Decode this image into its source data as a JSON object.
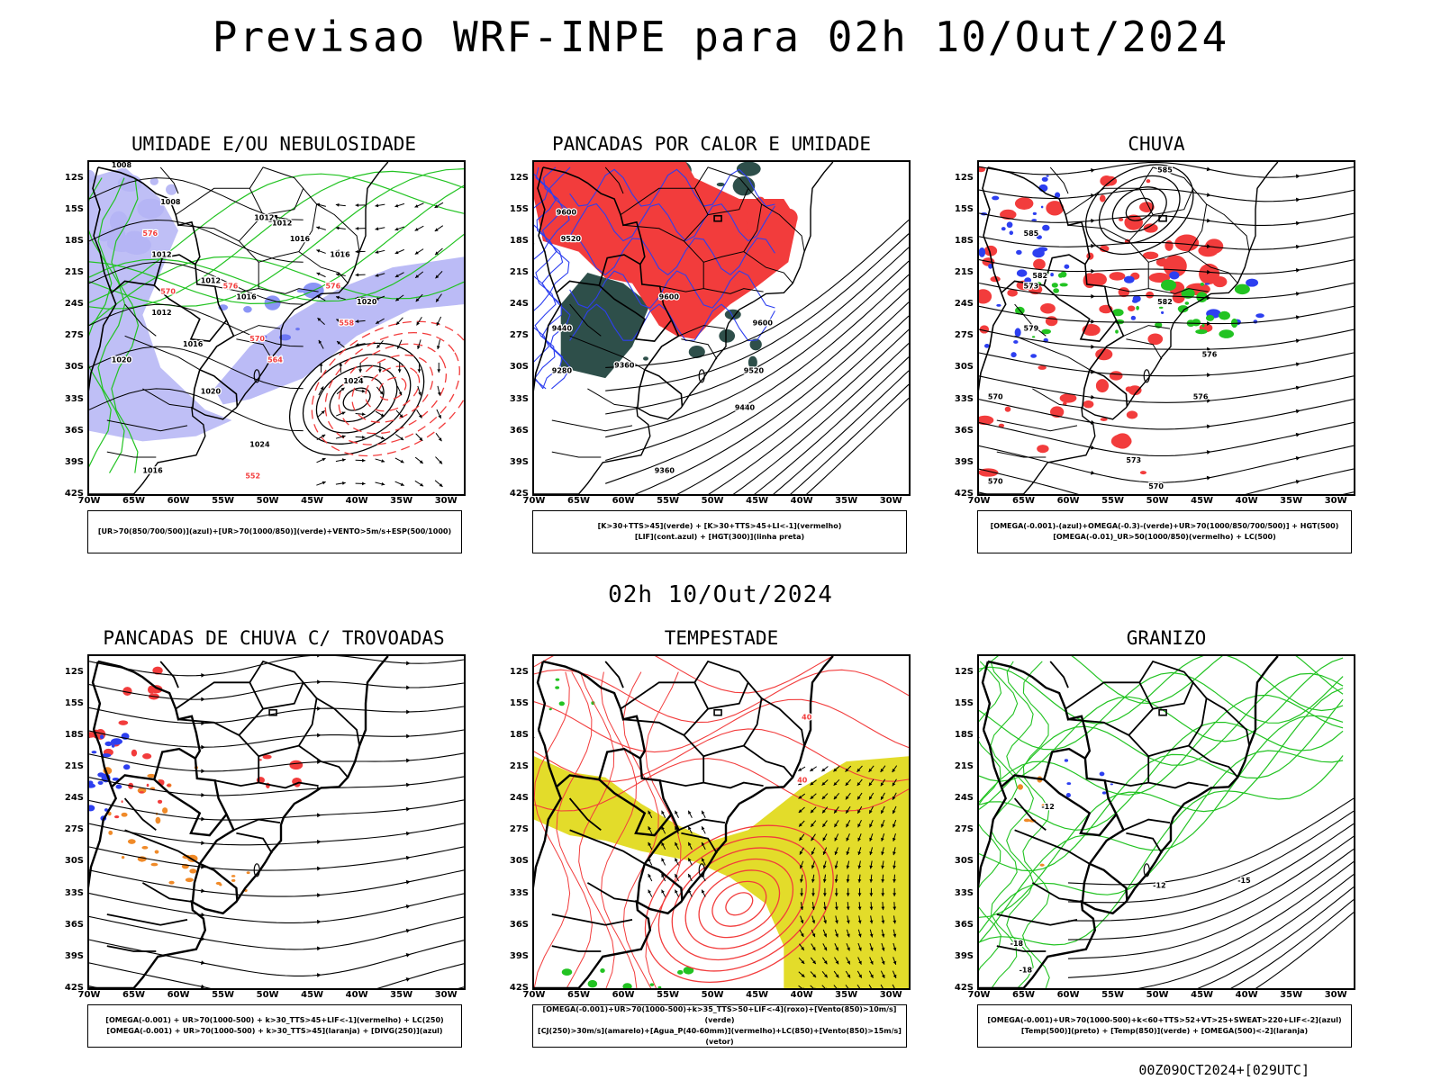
{
  "header": {
    "title": "Previsao WRF-INPE  para 02h 10/Out/2024",
    "mid_title": "02h 10/Out/2024",
    "footer": "00Z09OCT2024+[029UTC]"
  },
  "colors": {
    "red": "#f23c3c",
    "blue": "#2d3ff0",
    "green": "#22c322",
    "lavender": "#b4b4f5",
    "darkgreen": "#2e4f4a",
    "orange": "#f08a28",
    "yellow": "#e3dc2a",
    "black": "#000000"
  },
  "axes": {
    "lat_labels": [
      "12S",
      "15S",
      "18S",
      "21S",
      "24S",
      "27S",
      "30S",
      "33S",
      "36S",
      "39S",
      "42S"
    ],
    "lon_labels": [
      "70W",
      "65W",
      "60W",
      "55W",
      "50W",
      "45W",
      "40W",
      "35W",
      "30W"
    ],
    "lat_range": [
      -42,
      -10.5
    ],
    "lon_range": [
      -70,
      -28
    ]
  },
  "chart_data": [
    {
      "id": "umidade",
      "type": "heatmap",
      "title": "UMIDADE E/OU NEBULOSIDADE",
      "legend_lines": [
        "[UR>70(850/700/500)](azul)+[UR>70(1000/850)](verde)+VENTO>5m/s+ESP(500/1000)"
      ],
      "contour_labels": [
        {
          "text": "1008",
          "lon": -67.5,
          "lat": -11.0,
          "color": "black"
        },
        {
          "text": "1008",
          "lon": -62.0,
          "lat": -14.5,
          "color": "black"
        },
        {
          "text": "1012",
          "lon": -63.0,
          "lat": -19.5,
          "color": "black"
        },
        {
          "text": "1012",
          "lon": -51.5,
          "lat": -16.0,
          "color": "black"
        },
        {
          "text": "1012",
          "lon": -49.5,
          "lat": -16.5,
          "color": "black"
        },
        {
          "text": "1016",
          "lon": -47.5,
          "lat": -18.0,
          "color": "black"
        },
        {
          "text": "1016",
          "lon": -43.0,
          "lat": -19.5,
          "color": "black"
        },
        {
          "text": "1012",
          "lon": -57.5,
          "lat": -22.0,
          "color": "black"
        },
        {
          "text": "1012",
          "lon": -63.0,
          "lat": -25.0,
          "color": "black"
        },
        {
          "text": "1016",
          "lon": -53.5,
          "lat": -23.5,
          "color": "black"
        },
        {
          "text": "1016",
          "lon": -59.5,
          "lat": -28.0,
          "color": "black"
        },
        {
          "text": "1020",
          "lon": -40.0,
          "lat": -24.0,
          "color": "black"
        },
        {
          "text": "1020",
          "lon": -67.5,
          "lat": -29.5,
          "color": "black"
        },
        {
          "text": "1020",
          "lon": -57.5,
          "lat": -32.5,
          "color": "black"
        },
        {
          "text": "1024",
          "lon": -41.5,
          "lat": -31.5,
          "color": "black"
        },
        {
          "text": "1024",
          "lon": -52.0,
          "lat": -37.5,
          "color": "black"
        },
        {
          "text": "1016",
          "lon": -64.0,
          "lat": -40.0,
          "color": "black"
        },
        {
          "text": "576",
          "lon": -64.0,
          "lat": -17.5,
          "color": "red"
        },
        {
          "text": "570",
          "lon": -62.0,
          "lat": -23.0,
          "color": "red"
        },
        {
          "text": "576",
          "lon": -55.0,
          "lat": -22.5,
          "color": "red"
        },
        {
          "text": "570",
          "lon": -52.0,
          "lat": -27.5,
          "color": "red"
        },
        {
          "text": "564",
          "lon": -50.0,
          "lat": -29.5,
          "color": "red"
        },
        {
          "text": "558",
          "lon": -42.0,
          "lat": -26.0,
          "color": "red"
        },
        {
          "text": "552",
          "lon": -52.5,
          "lat": -40.5,
          "color": "red"
        },
        {
          "text": "576",
          "lon": -43.5,
          "lat": -22.5,
          "color": "red"
        }
      ]
    },
    {
      "id": "pancadas_calor",
      "type": "heatmap",
      "title": "PANCADAS POR CALOR E UMIDADE",
      "legend_lines": [
        "[K>30+TTS>45](verde) + [K>30+TTS>45+LI<-1](vermelho)",
        "[LIF](cont.azul) + [HGT(300)](linha preta)"
      ],
      "contour_labels": [
        {
          "text": "9600",
          "lon": -67.5,
          "lat": -15.5,
          "color": "black"
        },
        {
          "text": "9520",
          "lon": -67.0,
          "lat": -18.0,
          "color": "black"
        },
        {
          "text": "9600",
          "lon": -56.0,
          "lat": -23.5,
          "color": "black"
        },
        {
          "text": "9600",
          "lon": -45.5,
          "lat": -26.0,
          "color": "black"
        },
        {
          "text": "9440",
          "lon": -68.0,
          "lat": -26.5,
          "color": "black"
        },
        {
          "text": "9520",
          "lon": -46.5,
          "lat": -30.5,
          "color": "black"
        },
        {
          "text": "9440",
          "lon": -47.5,
          "lat": -34.0,
          "color": "black"
        },
        {
          "text": "9360",
          "lon": -61.0,
          "lat": -30.0,
          "color": "black"
        },
        {
          "text": "9280",
          "lon": -68.0,
          "lat": -30.5,
          "color": "black"
        },
        {
          "text": "9360",
          "lon": -56.5,
          "lat": -40.0,
          "color": "black"
        }
      ]
    },
    {
      "id": "chuva",
      "type": "heatmap",
      "title": "CHUVA",
      "legend_lines": [
        "[OMEGA(-0.001)-(azul)+OMEGA(-0.3)-(verde)+UR>70(1000/850/700/500)] + HGT(500)",
        "[OMEGA(-0.01)_UR>50(1000/850)(vermelho) + LC(500)"
      ],
      "contour_labels": [
        {
          "text": "585",
          "lon": -50.0,
          "lat": -11.5,
          "color": "black"
        },
        {
          "text": "585",
          "lon": -65.0,
          "lat": -17.5,
          "color": "black"
        },
        {
          "text": "582",
          "lon": -64.0,
          "lat": -21.5,
          "color": "black"
        },
        {
          "text": "579",
          "lon": -65.0,
          "lat": -26.5,
          "color": "black"
        },
        {
          "text": "576",
          "lon": -45.0,
          "lat": -29.0,
          "color": "black"
        },
        {
          "text": "576",
          "lon": -46.0,
          "lat": -33.0,
          "color": "black"
        },
        {
          "text": "573",
          "lon": -53.5,
          "lat": -39.0,
          "color": "black"
        },
        {
          "text": "570",
          "lon": -69.0,
          "lat": -33.0,
          "color": "black"
        },
        {
          "text": "570",
          "lon": -69.0,
          "lat": -41.0,
          "color": "black"
        },
        {
          "text": "570",
          "lon": -51.0,
          "lat": -41.5,
          "color": "black"
        },
        {
          "text": "573",
          "lon": -65.0,
          "lat": -22.5,
          "color": "black"
        },
        {
          "text": "582",
          "lon": -50.0,
          "lat": -24.0,
          "color": "black"
        }
      ]
    },
    {
      "id": "pancadas_trovoadas",
      "type": "heatmap",
      "title": "PANCADAS DE CHUVA C/ TROVOADAS",
      "legend_lines": [
        "[OMEGA(-0.001) + UR>70(1000-500) + k>30_TTS>45+LIF<-1](vermelho) + LC(250)",
        "[OMEGA(-0.001) + UR>70(1000-500) + k>30_TTS>45](laranja) + [DIVG(250)](azul)"
      ],
      "contour_labels": []
    },
    {
      "id": "tempestade",
      "type": "heatmap",
      "title": "TEMPESTADE",
      "legend_lines": [
        "[OMEGA(-0.001)+UR>70(1000-500)+k>35_TTS>50+LIF<-4](roxo)+[Vento(850)>10m/s](verde)",
        "[CJ(250)>30m/s](amarelo)+[Agua_P(40-60mm)](vermelho)+LC(850)+[Vento(850)>15m/s](vetor)"
      ],
      "contour_labels": [
        {
          "text": "40",
          "lon": -40.0,
          "lat": -16.5,
          "color": "red"
        },
        {
          "text": "40",
          "lon": -40.5,
          "lat": -22.5,
          "color": "red"
        }
      ]
    },
    {
      "id": "granizo",
      "type": "heatmap",
      "title": "GRANIZO",
      "legend_lines": [
        "[OMEGA(-0.001)+UR>70(1000-500)+k<60+TTS>52+VT>25+SWEAT>220+LIF<-2](azul)",
        "[Temp(500)](preto) + [Temp(850)](verde) + [OMEGA(500)<-2](laranja)"
      ],
      "contour_labels": [
        {
          "text": "-12",
          "lon": -63.0,
          "lat": -25.0,
          "color": "black"
        },
        {
          "text": "-12",
          "lon": -50.5,
          "lat": -32.5,
          "color": "black"
        },
        {
          "text": "-15",
          "lon": -41.0,
          "lat": -32.0,
          "color": "black"
        },
        {
          "text": "-18",
          "lon": -66.5,
          "lat": -38.0,
          "color": "black"
        },
        {
          "text": "-18",
          "lon": -65.5,
          "lat": -40.5,
          "color": "black"
        }
      ]
    }
  ]
}
